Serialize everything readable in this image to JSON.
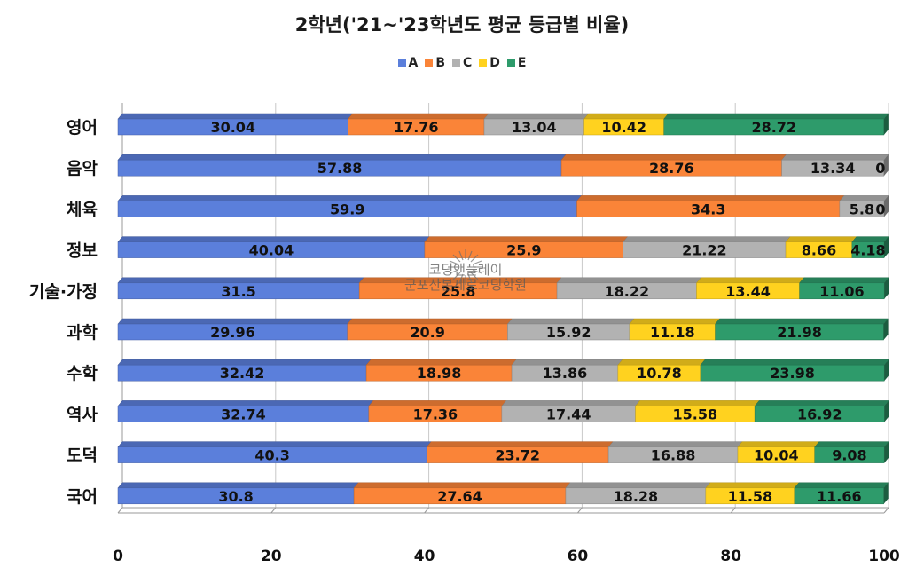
{
  "chart_data": {
    "type": "bar",
    "orientation": "horizontal",
    "stacked": true,
    "title": "2학년('21~'23학년도 평균 등급별 비율)",
    "categories": [
      "영어",
      "음악",
      "체육",
      "정보",
      "기술·가정",
      "과학",
      "수학",
      "역사",
      "도덕",
      "국어"
    ],
    "series": [
      {
        "name": "A",
        "color": "#5B7FDB",
        "values": [
          30.04,
          57.88,
          59.9,
          40.04,
          31.5,
          29.96,
          32.42,
          32.74,
          40.3,
          30.8
        ],
        "labels": [
          "30.04",
          "57.88",
          "59.9",
          "40.04",
          "31.5",
          "29.96",
          "32.42",
          "32.74",
          "40.3",
          "30.8"
        ]
      },
      {
        "name": "B",
        "color": "#FA8438",
        "values": [
          17.76,
          28.76,
          34.3,
          25.9,
          25.8,
          20.9,
          18.98,
          17.36,
          23.72,
          27.64
        ],
        "labels": [
          "17.76",
          "28.76",
          "34.3",
          "25.9",
          "25.8",
          "20.9",
          "18.98",
          "17.36",
          "23.72",
          "27.64"
        ]
      },
      {
        "name": "C",
        "color": "#B2B2B2",
        "values": [
          13.04,
          13.34,
          5.8,
          21.22,
          18.22,
          15.92,
          13.86,
          17.44,
          16.88,
          18.28
        ],
        "labels": [
          "13.04",
          "13.34",
          "5.8",
          "21.22",
          "18.22",
          "15.92",
          "13.86",
          "17.44",
          "16.88",
          "18.28"
        ]
      },
      {
        "name": "D",
        "color": "#FFD21F",
        "values": [
          10.42,
          0,
          0,
          8.66,
          13.44,
          11.18,
          10.78,
          15.58,
          10.04,
          11.58
        ],
        "labels": [
          "10.42",
          "0",
          "0",
          "8.66",
          "13.44",
          "11.18",
          "10.78",
          "15.58",
          "10.04",
          "11.58"
        ]
      },
      {
        "name": "E",
        "color": "#2E9B6B",
        "values": [
          28.72,
          0,
          0,
          4.18,
          11.06,
          21.98,
          23.98,
          16.92,
          9.08,
          11.66
        ],
        "labels": [
          "28.72",
          "",
          "",
          "4.18",
          "11.06",
          "21.98",
          "23.98",
          "16.92",
          "9.08",
          "11.66"
        ]
      }
    ],
    "xlim": [
      0,
      100
    ],
    "xticks": [
      "0",
      "20",
      "40",
      "60",
      "80",
      "100"
    ],
    "xlabel": "",
    "ylabel": "",
    "grid": true,
    "legend_position": "top"
  },
  "watermark": {
    "line1": "코딩앤플레이",
    "line2": "군포산본제로코딩학원"
  }
}
